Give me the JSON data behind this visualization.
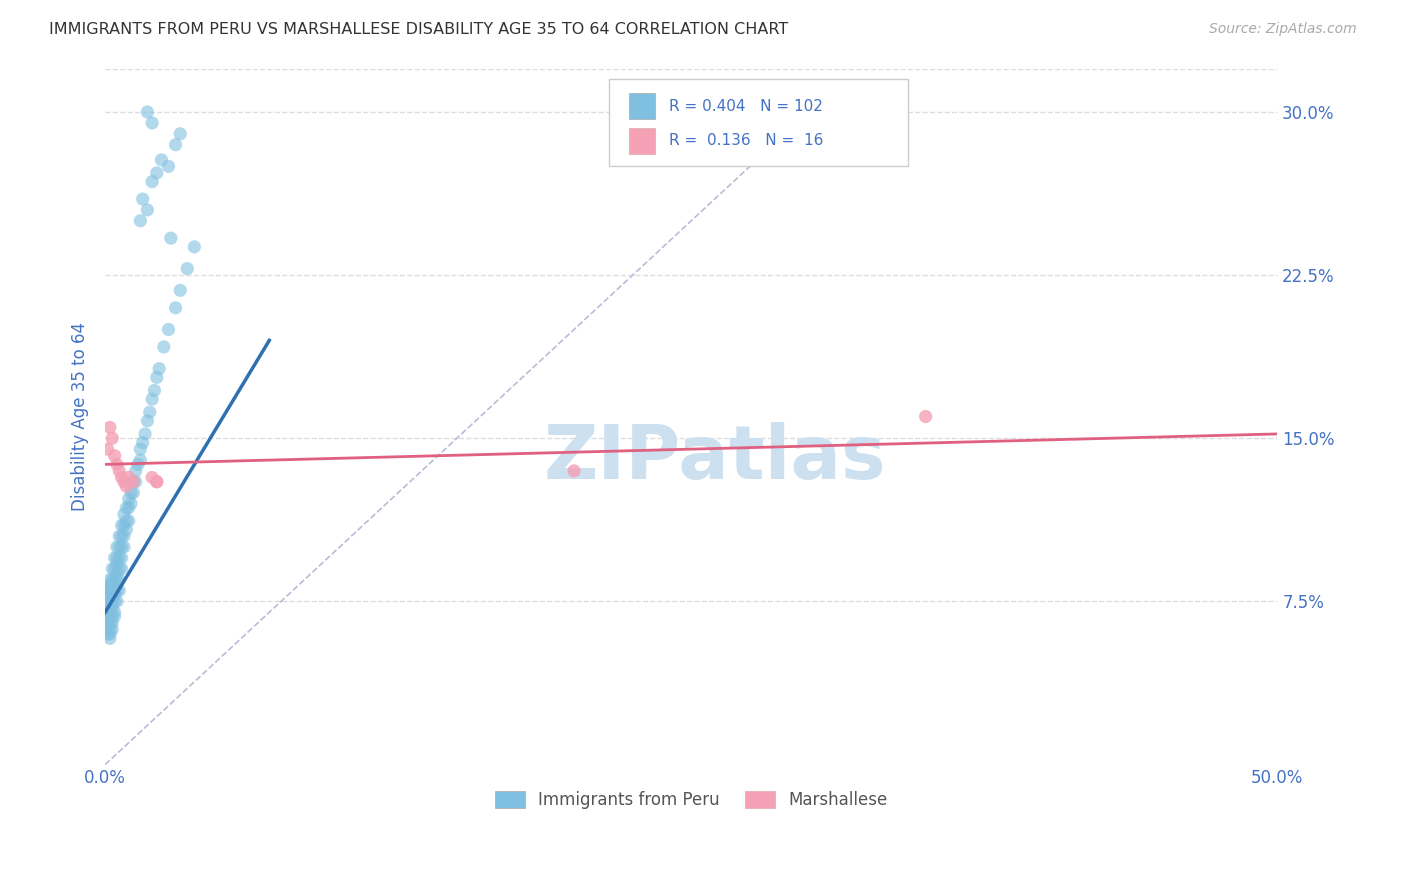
{
  "title": "IMMIGRANTS FROM PERU VS MARSHALLESE DISABILITY AGE 35 TO 64 CORRELATION CHART",
  "source": "Source: ZipAtlas.com",
  "ylabel": "Disability Age 35 to 64",
  "xlim": [
    0.0,
    0.5
  ],
  "ylim": [
    0.0,
    0.32
  ],
  "xtick_vals": [
    0.0,
    0.1,
    0.2,
    0.3,
    0.4,
    0.5
  ],
  "xticklabels": [
    "0.0%",
    "",
    "",
    "",
    "",
    "50.0%"
  ],
  "ytick_vals": [
    0.075,
    0.15,
    0.225,
    0.3
  ],
  "yticklabels": [
    "7.5%",
    "15.0%",
    "22.5%",
    "30.0%"
  ],
  "peru_R": 0.404,
  "peru_N": 102,
  "marsh_R": 0.136,
  "marsh_N": 16,
  "blue_color": "#7fbfdf",
  "pink_color": "#f4a0b5",
  "line_blue": "#3070b0",
  "line_pink": "#e06080",
  "diagonal_color": "#aaaacc",
  "watermark": "ZIPatlas",
  "watermark_color": "#cce0f0",
  "tick_color": "#4472c4",
  "grid_color": "#dddddd",
  "peru_x": [
    0.001,
    0.001,
    0.001,
    0.001,
    0.001,
    0.001,
    0.001,
    0.001,
    0.001,
    0.001,
    0.002,
    0.002,
    0.002,
    0.002,
    0.002,
    0.002,
    0.002,
    0.002,
    0.002,
    0.002,
    0.002,
    0.002,
    0.003,
    0.003,
    0.003,
    0.003,
    0.003,
    0.003,
    0.003,
    0.003,
    0.003,
    0.004,
    0.004,
    0.004,
    0.004,
    0.004,
    0.004,
    0.004,
    0.004,
    0.005,
    0.005,
    0.005,
    0.005,
    0.005,
    0.005,
    0.005,
    0.006,
    0.006,
    0.006,
    0.006,
    0.006,
    0.006,
    0.007,
    0.007,
    0.007,
    0.007,
    0.007,
    0.008,
    0.008,
    0.008,
    0.008,
    0.009,
    0.009,
    0.009,
    0.01,
    0.01,
    0.01,
    0.011,
    0.011,
    0.012,
    0.012,
    0.013,
    0.013,
    0.014,
    0.015,
    0.015,
    0.016,
    0.017,
    0.018,
    0.019,
    0.02,
    0.021,
    0.022,
    0.023,
    0.025,
    0.027,
    0.03,
    0.032,
    0.035,
    0.038,
    0.016,
    0.018,
    0.02,
    0.022,
    0.024,
    0.027,
    0.03,
    0.032,
    0.018,
    0.02,
    0.015,
    0.028
  ],
  "peru_y": [
    0.075,
    0.075,
    0.078,
    0.08,
    0.082,
    0.07,
    0.072,
    0.068,
    0.065,
    0.06,
    0.08,
    0.082,
    0.085,
    0.078,
    0.075,
    0.072,
    0.07,
    0.065,
    0.068,
    0.062,
    0.06,
    0.058,
    0.09,
    0.085,
    0.082,
    0.078,
    0.075,
    0.072,
    0.068,
    0.065,
    0.062,
    0.095,
    0.09,
    0.085,
    0.08,
    0.078,
    0.075,
    0.07,
    0.068,
    0.1,
    0.095,
    0.092,
    0.088,
    0.085,
    0.08,
    0.075,
    0.105,
    0.1,
    0.095,
    0.09,
    0.085,
    0.08,
    0.11,
    0.105,
    0.1,
    0.095,
    0.09,
    0.115,
    0.11,
    0.105,
    0.1,
    0.118,
    0.112,
    0.108,
    0.122,
    0.118,
    0.112,
    0.125,
    0.12,
    0.13,
    0.125,
    0.135,
    0.13,
    0.138,
    0.145,
    0.14,
    0.148,
    0.152,
    0.158,
    0.162,
    0.168,
    0.172,
    0.178,
    0.182,
    0.192,
    0.2,
    0.21,
    0.218,
    0.228,
    0.238,
    0.26,
    0.255,
    0.268,
    0.272,
    0.278,
    0.275,
    0.285,
    0.29,
    0.3,
    0.295,
    0.25,
    0.242
  ],
  "marsh_x": [
    0.001,
    0.002,
    0.003,
    0.004,
    0.005,
    0.006,
    0.007,
    0.008,
    0.009,
    0.01,
    0.012,
    0.02,
    0.022,
    0.022,
    0.2,
    0.35
  ],
  "marsh_y": [
    0.145,
    0.155,
    0.15,
    0.142,
    0.138,
    0.135,
    0.132,
    0.13,
    0.128,
    0.132,
    0.13,
    0.132,
    0.13,
    0.13,
    0.135,
    0.16
  ],
  "blue_line_x": [
    0.0,
    0.07
  ],
  "blue_line_y": [
    0.07,
    0.195
  ],
  "pink_line_x": [
    0.0,
    0.5
  ],
  "pink_line_y": [
    0.138,
    0.152
  ]
}
